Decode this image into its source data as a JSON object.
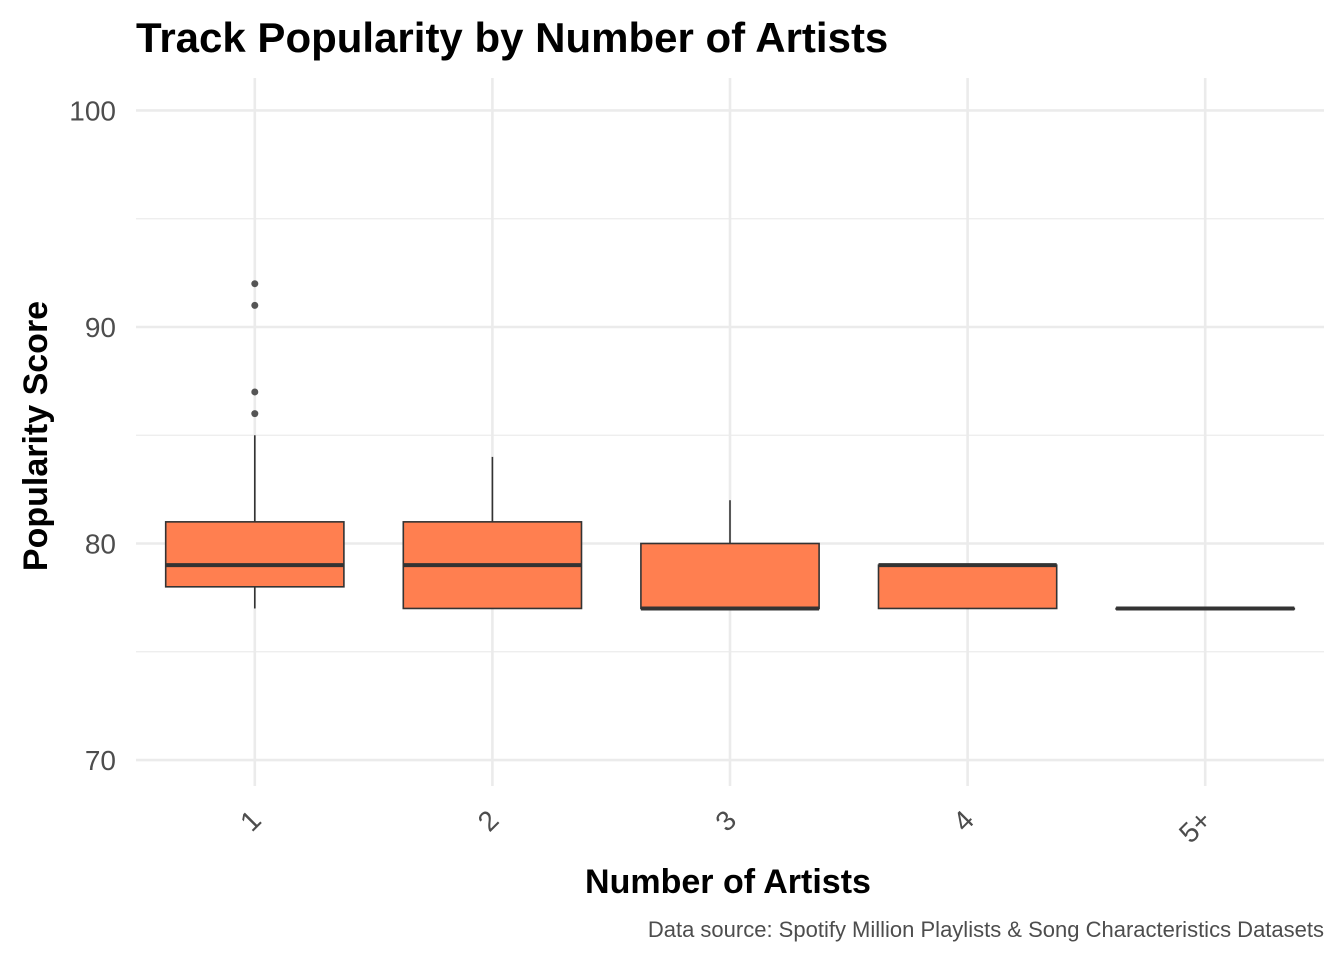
{
  "chart_data": {
    "type": "boxplot",
    "title": "Track Popularity by Number of Artists",
    "xlabel": "Number of Artists",
    "ylabel": "Popularity Score",
    "caption": "Data source: Spotify Million Playlists & Song Characteristics Datasets",
    "categories": [
      "1",
      "2",
      "3",
      "4",
      "5+"
    ],
    "ylim": [
      68.8,
      101.5
    ],
    "yticks": [
      70,
      80,
      90,
      100
    ],
    "yminor": [
      75,
      85,
      95
    ],
    "grid": true,
    "legend": "none",
    "box_fill": "#FF7F50",
    "box_stroke": "#333333",
    "grid_color": "#ebebeb",
    "boxes": [
      {
        "category": "1",
        "lower_whisker": 77,
        "q1": 78,
        "median": 79,
        "q3": 81,
        "upper_whisker": 85,
        "outliers": [
          86,
          87,
          91,
          92
        ]
      },
      {
        "category": "2",
        "lower_whisker": 77,
        "q1": 77,
        "median": 79,
        "q3": 81,
        "upper_whisker": 84,
        "outliers": []
      },
      {
        "category": "3",
        "lower_whisker": 77,
        "q1": 77,
        "median": 77,
        "q3": 80,
        "upper_whisker": 82,
        "outliers": []
      },
      {
        "category": "4",
        "lower_whisker": 77,
        "q1": 77,
        "median": 79,
        "q3": 79,
        "upper_whisker": 79,
        "outliers": []
      },
      {
        "category": "5+",
        "lower_whisker": 77,
        "q1": 77,
        "median": 77,
        "q3": 77,
        "upper_whisker": 77,
        "outliers": []
      }
    ]
  }
}
